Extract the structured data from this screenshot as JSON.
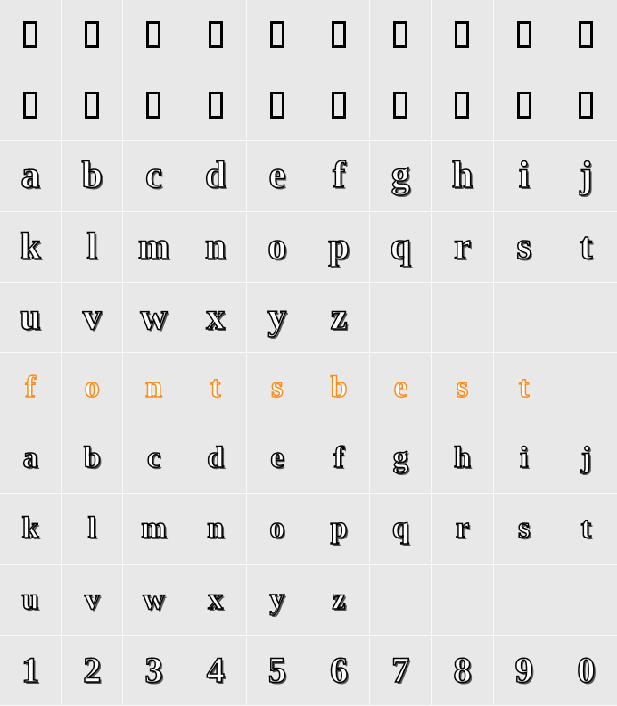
{
  "grid": {
    "cols": 10,
    "rows": 10,
    "cell_bg": "#e8e8e8",
    "cell_border": "#fafafa",
    "glyph_color": "#000000",
    "glyph_outline_fill": "#ffffff",
    "glyph_shadow_color": "#555555",
    "accent_color": "#ff8c1a",
    "font_family": "Georgia, serif",
    "font_size_main": 42,
    "font_size_small": 34,
    "font_size_digit": 40
  },
  "rowsData": [
    {
      "type": "nodef",
      "cells": [
        "",
        "",
        "",
        "",
        "",
        "",
        "",
        "",
        "",
        ""
      ]
    },
    {
      "type": "nodef",
      "cells": [
        "",
        "",
        "",
        "",
        "",
        "",
        "",
        "",
        "",
        ""
      ]
    },
    {
      "type": "lower",
      "cells": [
        "a",
        "b",
        "c",
        "d",
        "e",
        "f",
        "g",
        "h",
        "i",
        "j"
      ]
    },
    {
      "type": "lower",
      "cells": [
        "k",
        "l",
        "m",
        "n",
        "o",
        "p",
        "q",
        "r",
        "s",
        "t"
      ]
    },
    {
      "type": "lower",
      "cells": [
        "u",
        "v",
        "w",
        "x",
        "y",
        "z",
        "",
        "",
        "",
        ""
      ]
    },
    {
      "type": "orange",
      "cells": [
        "f",
        "o",
        "n",
        "t",
        "s",
        "b",
        "e",
        "s",
        "t",
        ""
      ]
    },
    {
      "type": "small",
      "cells": [
        "a",
        "b",
        "c",
        "d",
        "e",
        "f",
        "g",
        "h",
        "i",
        "j"
      ]
    },
    {
      "type": "small",
      "cells": [
        "k",
        "l",
        "m",
        "n",
        "o",
        "p",
        "q",
        "r",
        "s",
        "t"
      ]
    },
    {
      "type": "small",
      "cells": [
        "u",
        "v",
        "w",
        "x",
        "y",
        "z",
        "",
        "",
        "",
        ""
      ]
    },
    {
      "type": "digit",
      "cells": [
        "1",
        "2",
        "3",
        "4",
        "5",
        "6",
        "7",
        "8",
        "9",
        "0"
      ]
    }
  ]
}
